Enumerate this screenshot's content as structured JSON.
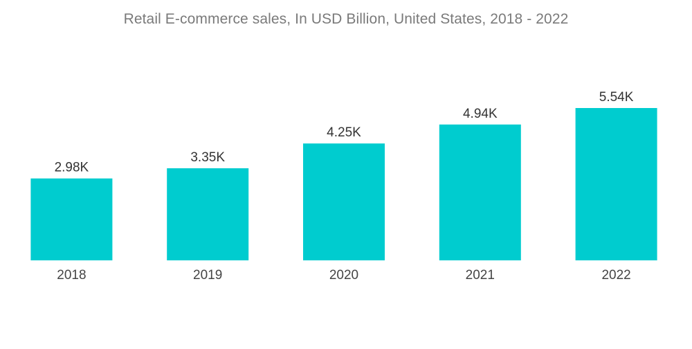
{
  "chart_data": {
    "type": "bar",
    "title": "Retail E-commerce sales, In USD Billion, United States, 2018 - 2022",
    "xlabel": "",
    "ylabel": "",
    "categories": [
      "2018",
      "2019",
      "2020",
      "2021",
      "2022"
    ],
    "values": [
      2980,
      3350,
      4250,
      4940,
      5540
    ],
    "value_labels": [
      "2.98K",
      "3.35K",
      "4.25K",
      "4.94K",
      "5.54K"
    ],
    "grid": false,
    "legend": "none",
    "colors": {
      "bar": "#00cccf"
    }
  }
}
